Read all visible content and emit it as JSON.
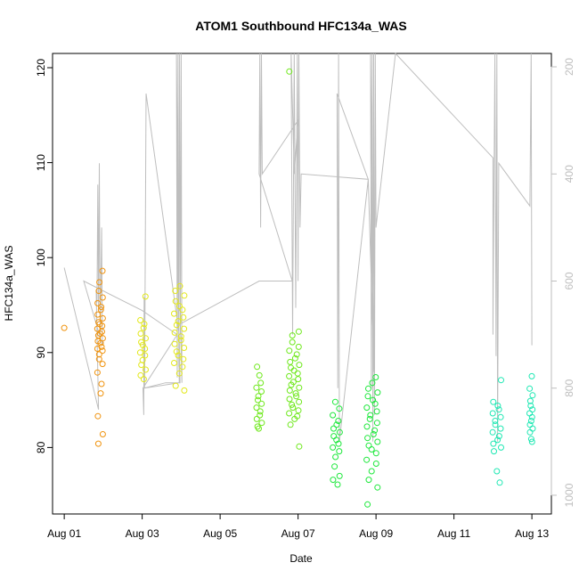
{
  "chart_data": {
    "type": "scatter",
    "title": "ATOM1 Southbound HFC134a_WAS",
    "xlabel": "Date",
    "ylabel": "HFC134a_WAS",
    "xlim": [
      0.7,
      13.5
    ],
    "ylim": [
      73.0,
      121.5
    ],
    "x_ticks": [
      {
        "value": 1,
        "label": "Aug 01"
      },
      {
        "value": 3,
        "label": "Aug 03"
      },
      {
        "value": 5,
        "label": "Aug 05"
      },
      {
        "value": 7,
        "label": "Aug 07"
      },
      {
        "value": 9,
        "label": "Aug 09"
      },
      {
        "value": 11,
        "label": "Aug 11"
      },
      {
        "value": 13,
        "label": "Aug 13"
      }
    ],
    "y_ticks": [
      80,
      90,
      100,
      110,
      120
    ],
    "secondary_axis": {
      "description": "altitude (inverted)",
      "lim": [
        175,
        1035
      ],
      "ticks": [
        200,
        400,
        600,
        800,
        1000
      ],
      "color": "#bebebe"
    },
    "color_by_day": {
      "1": "#f0930e",
      "2": "#f0930e",
      "3": "#e3e81a",
      "4": "#e3e81a",
      "6": "#6ee81b",
      "7": "#6ee81b",
      "8": "#1ee83c",
      "9": "#1ee83c",
      "12": "#1ee8b3",
      "13": "#1ee8b3"
    },
    "clusters": [
      {
        "center": 1.0,
        "spread": 0.0,
        "values": [
          92.6
        ]
      },
      {
        "center": 1.92,
        "spread": 0.07,
        "values": [
          98.6,
          97.4,
          96.5,
          95.8,
          95.2,
          94.8,
          94.5,
          94.0,
          93.6,
          93.2,
          93.0,
          92.8,
          92.5,
          92.2,
          92.0,
          91.8,
          91.5,
          91.2,
          91.0,
          90.6,
          90.4,
          90.2,
          89.8,
          89.3,
          88.8,
          87.9,
          86.7,
          85.7,
          83.3,
          81.4,
          80.4
        ]
      },
      {
        "center": 3.02,
        "spread": 0.07,
        "values": [
          95.9,
          93.4,
          93.0,
          92.6,
          92.0,
          91.5,
          91.1,
          90.8,
          90.4,
          90.0,
          89.7,
          89.2,
          88.7,
          88.2,
          87.6,
          87.2
        ]
      },
      {
        "center": 3.95,
        "spread": 0.13,
        "values": [
          97.0,
          96.5,
          96.0,
          95.4,
          94.9,
          94.5,
          94.1,
          93.7,
          93.3,
          92.9,
          92.5,
          92.1,
          91.7,
          91.3,
          90.9,
          90.5,
          90.1,
          89.7,
          89.3,
          88.9,
          88.5,
          87.8,
          86.5,
          86.0
        ]
      },
      {
        "center": 6.0,
        "spread": 0.07,
        "values": [
          88.5,
          87.6,
          86.8,
          86.3,
          85.9,
          85.4,
          85.0,
          84.6,
          84.2,
          83.8,
          83.4,
          83.0,
          82.6,
          82.2,
          82.0
        ]
      },
      {
        "center": 6.9,
        "spread": 0.13,
        "values": [
          119.6,
          92.2,
          91.8,
          91.1,
          90.6,
          90.2,
          89.8,
          89.4,
          89.0,
          88.7,
          88.4,
          88.1,
          87.8,
          87.5,
          87.2,
          86.9,
          86.6,
          86.3,
          86.0,
          85.7,
          85.4,
          85.1,
          84.8,
          84.5,
          84.2,
          83.9,
          83.6,
          83.3,
          83.0,
          82.4,
          80.1
        ]
      },
      {
        "center": 7.98,
        "spread": 0.09,
        "values": [
          84.8,
          84.1,
          83.4,
          82.8,
          82.4,
          82.0,
          81.6,
          81.2,
          80.8,
          80.4,
          80.0,
          79.6,
          79.0,
          78.0,
          77.0,
          76.6,
          76.1
        ]
      },
      {
        "center": 8.9,
        "spread": 0.14,
        "values": [
          87.4,
          86.8,
          86.2,
          85.8,
          85.4,
          85.0,
          84.6,
          84.2,
          83.8,
          83.4,
          83.0,
          82.6,
          82.2,
          81.8,
          81.4,
          81.0,
          80.6,
          80.2,
          79.8,
          79.4,
          78.7,
          78.3,
          77.5,
          76.6,
          75.8,
          74.0
        ]
      },
      {
        "center": 12.1,
        "spread": 0.11,
        "values": [
          87.1,
          84.8,
          84.4,
          84.0,
          83.6,
          83.2,
          82.8,
          82.4,
          82.0,
          81.6,
          81.2,
          80.8,
          80.4,
          80.0,
          79.6,
          77.5,
          76.3
        ]
      },
      {
        "center": 12.98,
        "spread": 0.04,
        "values": [
          87.5,
          86.2,
          85.5,
          84.9,
          84.4,
          84.0,
          83.6,
          83.2,
          82.8,
          82.4,
          82.0,
          81.6,
          80.9,
          80.6
        ]
      }
    ],
    "altitude_track": [
      [
        1.0,
        575
      ],
      [
        1.88,
        840
      ],
      [
        1.82,
        620
      ],
      [
        1.84,
        640
      ],
      [
        1.86,
        420
      ],
      [
        1.88,
        650
      ],
      [
        1.9,
        380
      ],
      [
        1.92,
        700
      ],
      [
        1.94,
        600
      ],
      [
        1.96,
        500
      ],
      [
        1.97,
        640
      ],
      [
        1.98,
        720
      ],
      [
        1.5,
        600
      ],
      [
        3.0,
        655
      ],
      [
        3.5,
        680
      ],
      [
        3.9,
        700
      ],
      [
        3.02,
        800
      ],
      [
        3.04,
        850
      ],
      [
        3.05,
        630
      ],
      [
        3.06,
        800
      ],
      [
        3.1,
        250
      ],
      [
        3.95,
        700
      ],
      [
        3.97,
        790
      ],
      [
        3.6,
        790
      ],
      [
        3.05,
        800
      ],
      [
        3.95,
        790
      ],
      [
        3.88,
        175
      ],
      [
        3.9,
        780
      ],
      [
        3.92,
        175
      ],
      [
        3.94,
        760
      ],
      [
        3.96,
        175
      ],
      [
        3.98,
        700
      ],
      [
        4.0,
        175
      ],
      [
        4.02,
        790
      ],
      [
        3.98,
        680
      ],
      [
        6.0,
        600
      ],
      [
        6.85,
        600
      ],
      [
        6.0,
        400
      ],
      [
        6.02,
        175
      ],
      [
        6.04,
        500
      ],
      [
        6.06,
        175
      ],
      [
        6.08,
        400
      ],
      [
        7.0,
        300
      ],
      [
        6.9,
        400
      ],
      [
        6.82,
        175
      ],
      [
        6.86,
        700
      ],
      [
        6.9,
        175
      ],
      [
        6.94,
        650
      ],
      [
        6.98,
        175
      ],
      [
        7.0,
        600
      ],
      [
        7.02,
        175
      ],
      [
        7.05,
        500
      ],
      [
        7.08,
        400
      ],
      [
        8.8,
        410
      ],
      [
        8.0,
        250
      ],
      [
        8.02,
        800
      ],
      [
        8.04,
        175
      ],
      [
        8.06,
        900
      ],
      [
        8.8,
        410
      ],
      [
        8.95,
        770
      ],
      [
        8.86,
        175
      ],
      [
        8.88,
        800
      ],
      [
        8.9,
        175
      ],
      [
        8.92,
        900
      ],
      [
        8.94,
        175
      ],
      [
        8.96,
        850
      ],
      [
        8.98,
        175
      ],
      [
        9.0,
        500
      ],
      [
        9.5,
        175
      ],
      [
        12.0,
        370
      ],
      [
        12.0,
        700
      ],
      [
        12.05,
        175
      ],
      [
        12.08,
        740
      ],
      [
        12.1,
        175
      ],
      [
        12.12,
        900
      ],
      [
        12.15,
        380
      ],
      [
        12.95,
        460
      ],
      [
        12.98,
        175
      ],
      [
        13.0,
        720
      ]
    ]
  }
}
